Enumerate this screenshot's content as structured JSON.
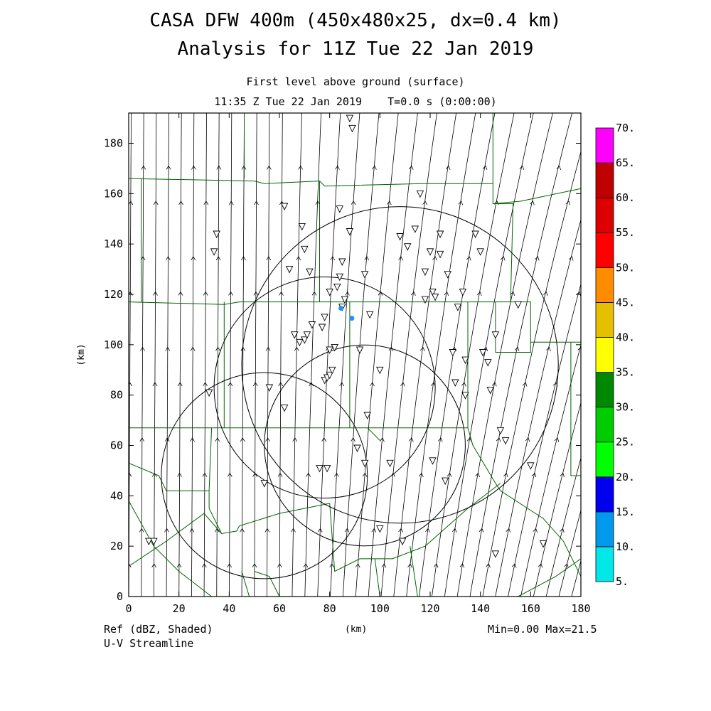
{
  "header": {
    "title_line1": "CASA DFW 400m (450x480x25, dx=0.4 km)",
    "title_line2": "Analysis for 11Z Tue 22 Jan 2019",
    "subtitle_line1": "First level above ground (surface)",
    "subtitle_line2": "11:35 Z Tue 22 Jan 2019    T=0.0 s (0:00:00)"
  },
  "footer": {
    "field1": "Ref (dBZ, Shaded)",
    "field2": "U-V Streamline",
    "xunit": "(km)",
    "minmax": "Min=0.00 Max=21.5"
  },
  "chart_data": {
    "type": "map",
    "xlabel": "(km)",
    "ylabel": "(km)",
    "xlim": [
      0,
      180
    ],
    "ylim": [
      0,
      192
    ],
    "xticks": [
      0,
      20,
      40,
      60,
      80,
      100,
      120,
      140,
      160,
      180
    ],
    "yticks": [
      0,
      20,
      40,
      60,
      80,
      100,
      120,
      140,
      160,
      180
    ],
    "radar_rings": [
      {
        "cx": 108,
        "cy": 92,
        "r": 63
      },
      {
        "cx": 78,
        "cy": 83,
        "r": 44
      },
      {
        "cx": 94,
        "cy": 60,
        "r": 40
      },
      {
        "cx": 54,
        "cy": 48,
        "r": 41
      }
    ],
    "echoes": [
      {
        "x": 84.5,
        "y": 114.5,
        "dbz": 12
      },
      {
        "x": 88.8,
        "y": 110.5,
        "dbz": 12
      }
    ],
    "stations": [
      [
        8,
        22
      ],
      [
        10,
        22
      ],
      [
        32,
        81
      ],
      [
        34,
        137
      ],
      [
        35,
        144
      ],
      [
        54,
        45
      ],
      [
        56,
        83
      ],
      [
        62,
        155
      ],
      [
        62,
        75
      ],
      [
        69,
        147
      ],
      [
        70,
        138
      ],
      [
        72,
        129
      ],
      [
        66,
        104
      ],
      [
        68,
        101
      ],
      [
        70,
        102
      ],
      [
        71,
        104
      ],
      [
        73,
        108
      ],
      [
        77,
        107
      ],
      [
        78,
        111
      ],
      [
        78,
        86
      ],
      [
        79,
        87
      ],
      [
        80,
        88
      ],
      [
        81,
        90
      ],
      [
        80,
        98
      ],
      [
        82,
        99
      ],
      [
        80,
        121
      ],
      [
        83,
        123
      ],
      [
        85,
        115
      ],
      [
        86,
        118
      ],
      [
        85,
        133
      ],
      [
        84,
        127
      ],
      [
        84,
        154
      ],
      [
        88,
        190
      ],
      [
        89,
        186
      ],
      [
        92,
        98
      ],
      [
        95,
        72
      ],
      [
        91,
        59
      ],
      [
        94,
        53
      ],
      [
        104,
        53
      ],
      [
        100,
        27
      ],
      [
        108,
        143
      ],
      [
        111,
        139
      ],
      [
        114,
        146
      ],
      [
        116,
        160
      ],
      [
        118,
        129
      ],
      [
        121,
        121
      ],
      [
        122,
        119
      ],
      [
        120,
        137
      ],
      [
        124,
        136
      ],
      [
        127,
        128
      ],
      [
        124,
        144
      ],
      [
        129,
        97
      ],
      [
        130,
        85
      ],
      [
        131,
        115
      ],
      [
        133,
        121
      ],
      [
        134,
        94
      ],
      [
        134,
        80
      ],
      [
        138,
        144
      ],
      [
        140,
        137
      ],
      [
        141,
        97
      ],
      [
        143,
        93
      ],
      [
        144,
        82
      ],
      [
        146,
        104
      ],
      [
        148,
        66
      ],
      [
        150,
        62
      ],
      [
        155,
        116
      ],
      [
        160,
        52
      ],
      [
        165,
        21
      ],
      [
        146,
        17
      ],
      [
        109,
        22
      ],
      [
        76,
        51
      ],
      [
        79,
        51
      ],
      [
        88,
        145
      ],
      [
        94,
        128
      ],
      [
        96,
        112
      ],
      [
        100,
        90
      ],
      [
        118,
        118
      ],
      [
        126,
        46
      ],
      [
        121,
        54
      ],
      [
        64,
        130
      ]
    ],
    "colorbar": {
      "levels": [
        "5.",
        "10.",
        "15.",
        "20.",
        "25.",
        "30.",
        "35.",
        "40.",
        "45.",
        "50.",
        "55.",
        "60.",
        "65.",
        "70."
      ],
      "colors": [
        "#00e8e8",
        "#0099ee",
        "#0000ee",
        "#00ff00",
        "#00cc00",
        "#008800",
        "#ffff00",
        "#e6bf00",
        "#ff8c00",
        "#ff0000",
        "#dd0000",
        "#c00000",
        "#ff00ff"
      ]
    },
    "colors": {
      "map_lines": "#006400",
      "streamlines": "#000000",
      "echo": "#1e90ff"
    }
  }
}
